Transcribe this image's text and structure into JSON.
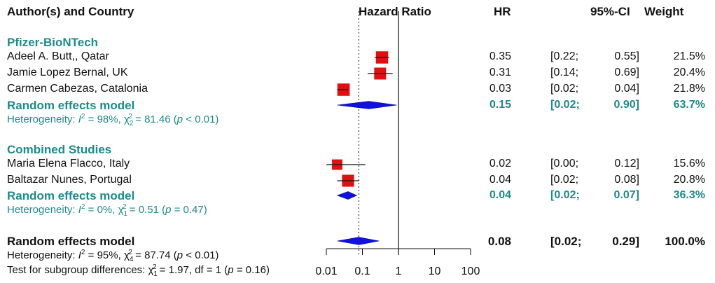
{
  "headers": {
    "study": "Author(s) and Country",
    "plot": "Hazard Ratio",
    "hr": "HR",
    "ci": "95%-CI",
    "weight": "Weight"
  },
  "groups": [
    {
      "name": "Pfizer-BioNTech",
      "studies": [
        {
          "label": "Adeel A. Butt,, Qatar",
          "hr": 0.35,
          "lo": 0.22,
          "hi": 0.55,
          "hr_text": "0.35",
          "lo_text": "[0.22;",
          "hi_text": "0.55]",
          "weight": "21.5%"
        },
        {
          "label": "Jamie Lopez Bernal, UK",
          "hr": 0.31,
          "lo": 0.14,
          "hi": 0.69,
          "hr_text": "0.31",
          "lo_text": "[0.14;",
          "hi_text": "0.69]",
          "weight": "20.4%"
        },
        {
          "label": "Carmen Cabezas, Catalonia",
          "hr": 0.03,
          "lo": 0.02,
          "hi": 0.04,
          "hr_text": "0.03",
          "lo_text": "[0.02;",
          "hi_text": "0.04]",
          "weight": "21.8%"
        }
      ],
      "summary": {
        "label": "Random effects model",
        "hr": 0.15,
        "lo": 0.02,
        "hi": 0.9,
        "hr_text": "0.15",
        "lo_text": "[0.02;",
        "hi_text": "0.90]",
        "weight": "63.7%"
      },
      "heterogeneity": {
        "prefix": "Heterogeneity: ",
        "i2": "98%",
        "df": "2",
        "chi2": "81.46",
        "p": "< 0.01"
      }
    },
    {
      "name": "Combined Studies",
      "studies": [
        {
          "label": "Maria Elena Flacco, Italy",
          "hr": 0.02,
          "lo": 0.0,
          "hi": 0.12,
          "hr_text": "0.02",
          "lo_text": "[0.00;",
          "hi_text": "0.12]",
          "weight": "15.6%"
        },
        {
          "label": "Baltazar Nunes, Portugal",
          "hr": 0.04,
          "lo": 0.02,
          "hi": 0.08,
          "hr_text": "0.04",
          "lo_text": "[0.02;",
          "hi_text": "0.08]",
          "weight": "20.8%"
        }
      ],
      "summary": {
        "label": "Random effects model",
        "hr": 0.04,
        "lo": 0.02,
        "hi": 0.07,
        "hr_text": "0.04",
        "lo_text": "[0.02;",
        "hi_text": "0.07]",
        "weight": "36.3%"
      },
      "heterogeneity": {
        "prefix": "Heterogeneity: ",
        "i2": "0%",
        "df": "1",
        "chi2": "0.51",
        "p": "= 0.47"
      }
    }
  ],
  "overall": {
    "label": "Random effects model",
    "hr": 0.08,
    "lo": 0.02,
    "hi": 0.29,
    "hr_text": "0.08",
    "lo_text": "[0.02;",
    "hi_text": "0.29]",
    "weight": "100.0%",
    "heterogeneity": {
      "prefix": "Heterogeneity: ",
      "i2": "95%",
      "df": "4",
      "chi2": "87.74",
      "p": "< 0.01"
    },
    "subgroup_test": {
      "prefix": "Test for subgroup differences: ",
      "df": "1",
      "chi2": "1.97",
      "df_text": "df = 1",
      "p": "= 0.16"
    }
  },
  "chart_data": {
    "type": "forest",
    "title": "",
    "xlabel": "Hazard Ratio",
    "scale": "log10",
    "xlim": [
      0.01,
      100
    ],
    "ticks": [
      0.01,
      0.1,
      1,
      10,
      100
    ],
    "tick_labels": [
      "0.01",
      "0.1",
      "1",
      "10",
      "100"
    ],
    "reference_line": 1,
    "overall_line": 0.08,
    "colors": {
      "square": "#e01010",
      "diamond": "#1010e0",
      "teal": "#1f8a8a",
      "line": "#111111"
    }
  }
}
